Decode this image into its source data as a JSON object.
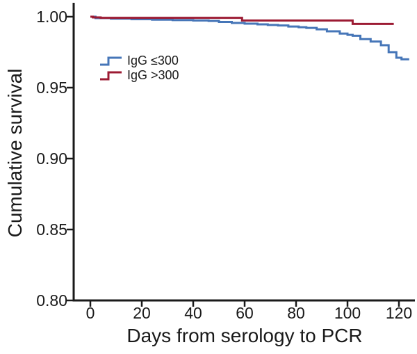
{
  "chart_data": {
    "type": "line",
    "subtype": "kaplan-meier-step",
    "title": "",
    "xlabel": "Days from serology to PCR",
    "ylabel": "Cumulative survival",
    "xlim": [
      0,
      126
    ],
    "ylim": [
      0.8,
      1.0
    ],
    "x_ticks": [
      0,
      20,
      40,
      60,
      80,
      100,
      120
    ],
    "y_ticks": [
      1.0,
      0.95,
      0.9,
      0.85,
      0.8
    ],
    "grid": false,
    "legend_position": "upper-left-inside",
    "background_color": "#ffffff",
    "axis_color": "#1a1a1a",
    "series": [
      {
        "name": "IgG ≤300",
        "color": "#4676b8",
        "points": [
          [
            0,
            1.0
          ],
          [
            2,
            0.999
          ],
          [
            8,
            0.9986
          ],
          [
            16,
            0.9982
          ],
          [
            24,
            0.9979
          ],
          [
            32,
            0.9976
          ],
          [
            40,
            0.9973
          ],
          [
            46,
            0.997
          ],
          [
            50,
            0.9963
          ],
          [
            55,
            0.9956
          ],
          [
            60,
            0.9951
          ],
          [
            65,
            0.9946
          ],
          [
            69,
            0.9942
          ],
          [
            73,
            0.9938
          ],
          [
            77,
            0.9931
          ],
          [
            81,
            0.9926
          ],
          [
            84,
            0.9921
          ],
          [
            88,
            0.9911
          ],
          [
            92,
            0.9897
          ],
          [
            97,
            0.9881
          ],
          [
            100,
            0.9872
          ],
          [
            102,
            0.9866
          ],
          [
            105,
            0.9842
          ],
          [
            109,
            0.9825
          ],
          [
            113,
            0.9799
          ],
          [
            116,
            0.975
          ],
          [
            119,
            0.9711
          ],
          [
            121,
            0.97
          ],
          [
            124,
            0.97
          ]
        ]
      },
      {
        "name": "IgG >300",
        "color": "#9c1b33",
        "points": [
          [
            0,
            1.0
          ],
          [
            1,
            0.9995
          ],
          [
            4,
            0.9992
          ],
          [
            58,
            0.9992
          ],
          [
            59,
            0.9973
          ],
          [
            101,
            0.9973
          ],
          [
            102,
            0.9949
          ],
          [
            118,
            0.9949
          ]
        ]
      }
    ]
  }
}
